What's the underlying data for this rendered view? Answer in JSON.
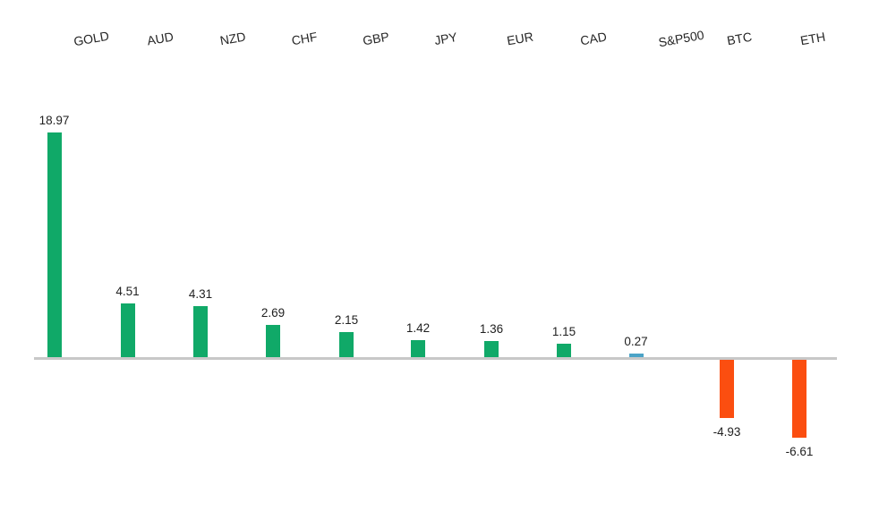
{
  "chart_data": {
    "type": "bar",
    "title": "",
    "xlabel": "",
    "ylabel": "",
    "categories": [
      "GOLD",
      "AUD",
      "NZD",
      "CHF",
      "GBP",
      "JPY",
      "EUR",
      "CAD",
      "S&P500",
      "BTC",
      "ETH"
    ],
    "values": [
      18.97,
      4.51,
      4.31,
      2.69,
      2.15,
      1.42,
      1.36,
      1.15,
      0.27,
      -4.93,
      -6.61
    ],
    "value_labels": [
      "18.97",
      "4.51",
      "4.31",
      "2.69",
      "2.15",
      "1.42",
      "1.36",
      "1.15",
      "0.27",
      "-4.93",
      "-6.61"
    ],
    "bar_colors": [
      "#10A968",
      "#10A968",
      "#10A968",
      "#10A968",
      "#10A968",
      "#10A968",
      "#10A968",
      "#10A968",
      "#4BA3C7",
      "#FB4E10",
      "#FB4E10"
    ],
    "colors": {
      "positive": "#10A968",
      "sp500": "#4BA3C7",
      "negative": "#FB4E10",
      "axis_line": "#C8C8C8",
      "label_text": "#262626",
      "background": "#FFFFFF"
    },
    "ylim": [
      -8,
      20
    ],
    "baseline_value": 0,
    "grid": false,
    "legend": false,
    "category_label_position": "top",
    "category_label_rotation_deg": -10
  }
}
